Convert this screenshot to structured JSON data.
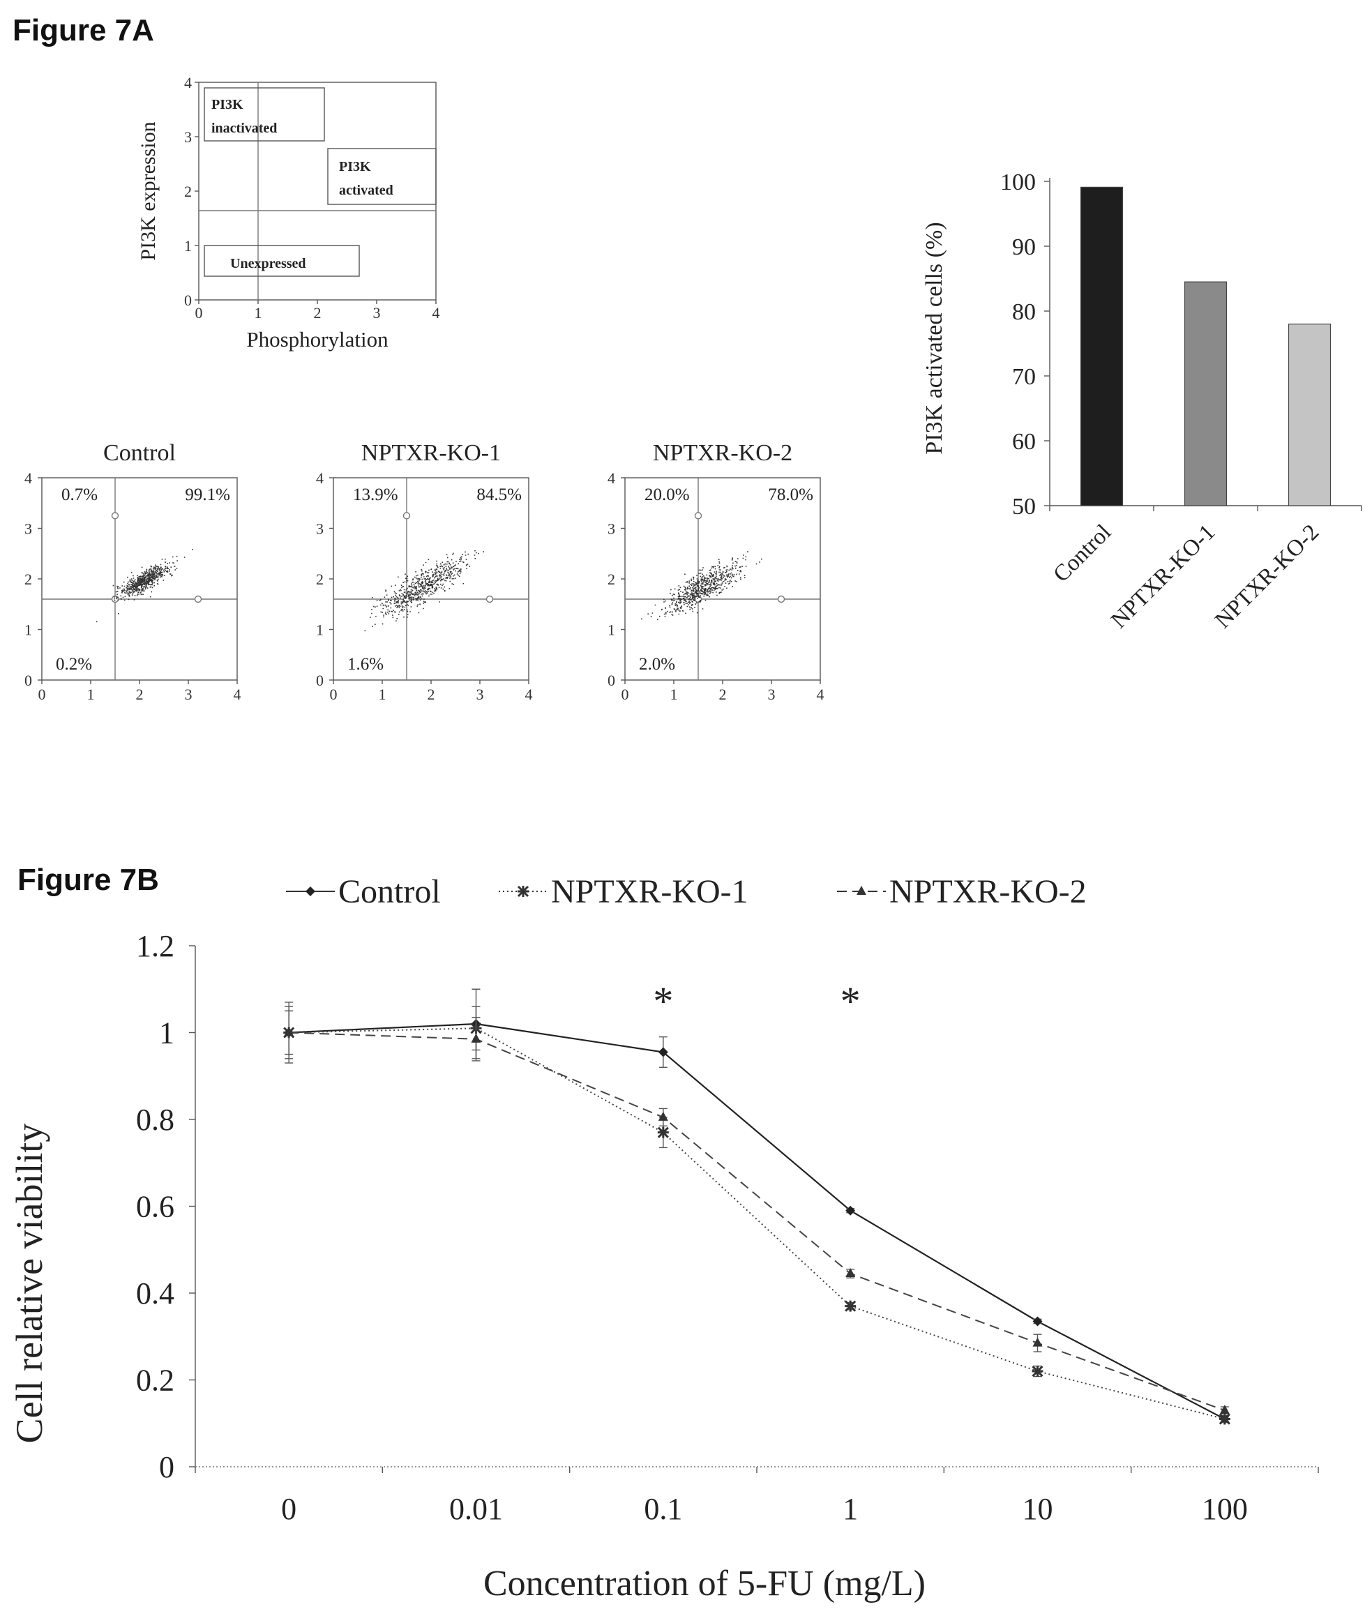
{
  "figure_a": {
    "label": "Figure 7A",
    "schematic": {
      "ylabel": "PI3K expression",
      "xlabel": "Phosphorylation",
      "ticks": [
        "0",
        "1",
        "2",
        "3",
        "4"
      ],
      "box_inactivated": [
        "PI3K",
        "inactivated"
      ],
      "box_activated": [
        "PI3K",
        "activated"
      ],
      "box_unexpressed": "Unexpressed"
    },
    "flow_plots": [
      {
        "title": "Control",
        "q_upper_left": "0.7%",
        "q_upper_right": "99.1%",
        "q_lower_left": "0.2%",
        "cloud": {
          "cx": 2.1,
          "cy": 1.98,
          "spread": 0.3
        }
      },
      {
        "title": "NPTXR-KO-1",
        "q_upper_left": "13.9%",
        "q_upper_right": "84.5%",
        "q_lower_left": "1.6%",
        "cloud": {
          "cx": 1.8,
          "cy": 1.85,
          "spread": 0.5
        }
      },
      {
        "title": "NPTXR-KO-2",
        "q_upper_left": "20.0%",
        "q_upper_right": "78.0%",
        "q_lower_left": "2.0%",
        "cloud": {
          "cx": 1.6,
          "cy": 1.85,
          "spread": 0.45
        }
      }
    ],
    "flow_ticks": [
      "0",
      "1",
      "2",
      "3",
      "4"
    ]
  },
  "figure_b": {
    "label": "Figure 7B"
  },
  "chart_data": [
    {
      "type": "bar",
      "ylabel": "PI3K activated cells (%)",
      "categories": [
        "Control",
        "NPTXR-KO-1",
        "NPTXR-KO-2"
      ],
      "values": [
        99.1,
        84.5,
        78.0
      ],
      "colors": [
        "#1e1e1e",
        "#8a8a8a",
        "#c4c4c4"
      ],
      "ylim": [
        50,
        100
      ],
      "yticks": [
        "50",
        "60",
        "70",
        "80",
        "90",
        "100"
      ]
    },
    {
      "type": "line",
      "xlabel": "Concentration of 5-FU (mg/L)",
      "ylabel": "Cell relative viability",
      "x": [
        "0",
        "0.01",
        "0.1",
        "1",
        "10",
        "100"
      ],
      "ylim": [
        0,
        1.2
      ],
      "yticks": [
        "0",
        "0.2",
        "0.4",
        "0.6",
        "0.8",
        "1",
        "1.2"
      ],
      "legend_position": "top",
      "significance_marks": [
        {
          "x": "0.1",
          "label": "*"
        },
        {
          "x": "1",
          "label": "*"
        }
      ],
      "series": [
        {
          "name": "Control",
          "style": "solid",
          "marker": "diamond",
          "values": [
            1.0,
            1.02,
            0.955,
            0.59,
            0.335,
            0.11
          ],
          "errors": [
            0.07,
            0.08,
            0.035,
            0.005,
            0.005,
            0.005
          ]
        },
        {
          "name": "NPTXR-KO-1",
          "style": "dotted",
          "marker": "star",
          "values": [
            1.0,
            1.01,
            0.77,
            0.37,
            0.22,
            0.11
          ],
          "errors": [
            0.05,
            0.05,
            0.035,
            0.008,
            0.012,
            0.008
          ]
        },
        {
          "name": "NPTXR-KO-2",
          "style": "dashed",
          "marker": "triangle",
          "values": [
            1.0,
            0.985,
            0.805,
            0.445,
            0.285,
            0.13
          ],
          "errors": [
            0.06,
            0.05,
            0.02,
            0.01,
            0.02,
            0.008
          ]
        }
      ]
    }
  ]
}
